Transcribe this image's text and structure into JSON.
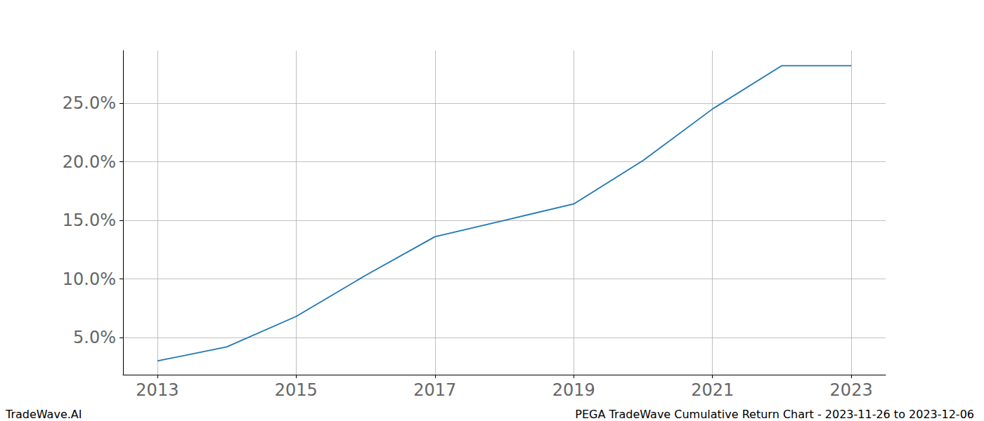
{
  "chart_data": {
    "type": "line",
    "title": "PEGA TradeWave Cumulative Return Chart - 2023-11-26 to 2023-12-06",
    "source": "TradeWave.AI",
    "x": [
      2013,
      2014,
      2015,
      2016,
      2017,
      2018,
      2019,
      2020,
      2021,
      2022,
      2023
    ],
    "values": [
      3.0,
      4.2,
      6.8,
      10.3,
      13.6,
      15.0,
      16.4,
      20.1,
      24.5,
      28.2,
      28.2
    ],
    "color": "#1f77b4",
    "xlim": [
      2012.505,
      2023.495
    ],
    "xticks": [
      2013,
      2015,
      2017,
      2019,
      2021,
      2023
    ],
    "ylim": [
      1.83,
      29.49
    ],
    "yticks": [
      {
        "value": 5,
        "label": "5.0%"
      },
      {
        "value": 10,
        "label": "10.0%"
      },
      {
        "value": 15,
        "label": "15.0%"
      },
      {
        "value": 20,
        "label": "20.0%"
      },
      {
        "value": 25,
        "label": "25.0%"
      }
    ],
    "grid": true
  }
}
